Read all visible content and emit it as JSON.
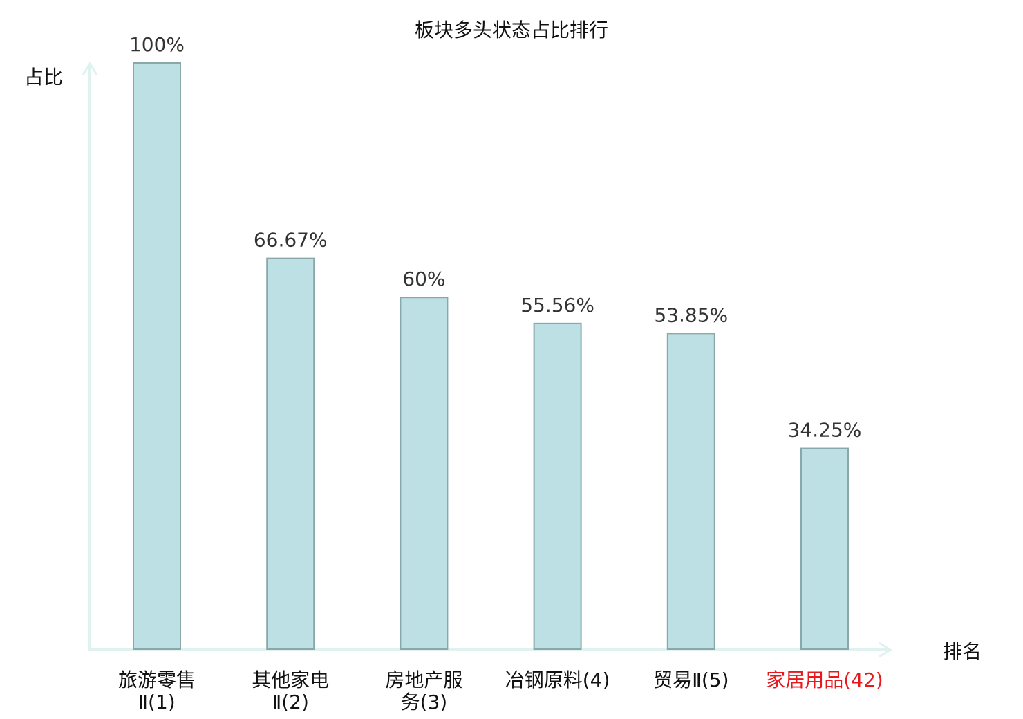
{
  "chart_data": {
    "type": "bar",
    "title": "板块多头状态占比排行",
    "ylabel": "占比",
    "xlabel": "排名",
    "ylim": [
      0,
      100
    ],
    "grid": false,
    "categories": [
      [
        "旅游零售",
        "Ⅱ(1)"
      ],
      [
        "其他家电",
        "Ⅱ(2)"
      ],
      [
        "房地产服",
        "务(3)"
      ],
      [
        "冶钢原料(4)"
      ],
      [
        "贸易Ⅱ(5)"
      ],
      [
        "家居用品(42)"
      ]
    ],
    "values": [
      100,
      66.67,
      60,
      55.56,
      53.85,
      34.25
    ],
    "value_labels": [
      "100%",
      "66.67%",
      "60%",
      "55.56%",
      "53.85%",
      "34.25%"
    ],
    "highlight_index": 5,
    "colors": {
      "bar_fill": "#bce0e3",
      "bar_stroke": "#88a8aa",
      "axis": "#dff2ef",
      "text": "#333333",
      "highlight": "#e8181c"
    }
  }
}
